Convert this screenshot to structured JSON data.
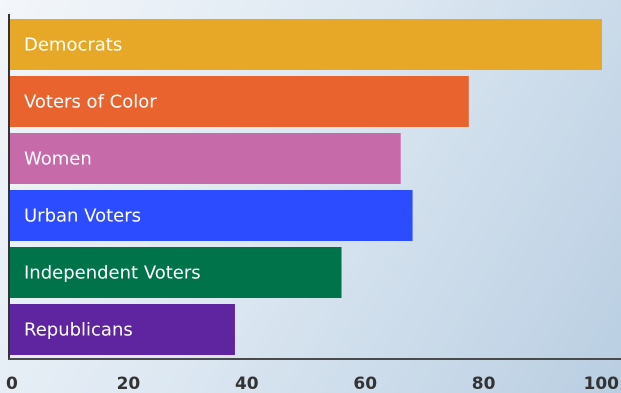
{
  "chart_data": {
    "type": "bar",
    "orientation": "horizontal",
    "title": "",
    "xlabel": "",
    "ylabel": "",
    "categories": [
      "Democrats",
      "Voters of Color",
      "Women",
      "Urban Voters",
      "Independent Voters",
      "Republicans"
    ],
    "values": [
      100,
      77.5,
      66,
      68,
      56,
      38
    ],
    "colors": [
      "#e8a827",
      "#e8632e",
      "#c66aa9",
      "#2b4cff",
      "#00734a",
      "#5f24a0"
    ],
    "xlim": [
      0,
      100
    ],
    "xticks": [
      "0",
      "20",
      "40",
      "60",
      "80",
      "100"
    ],
    "grid": false,
    "legend": "none"
  }
}
